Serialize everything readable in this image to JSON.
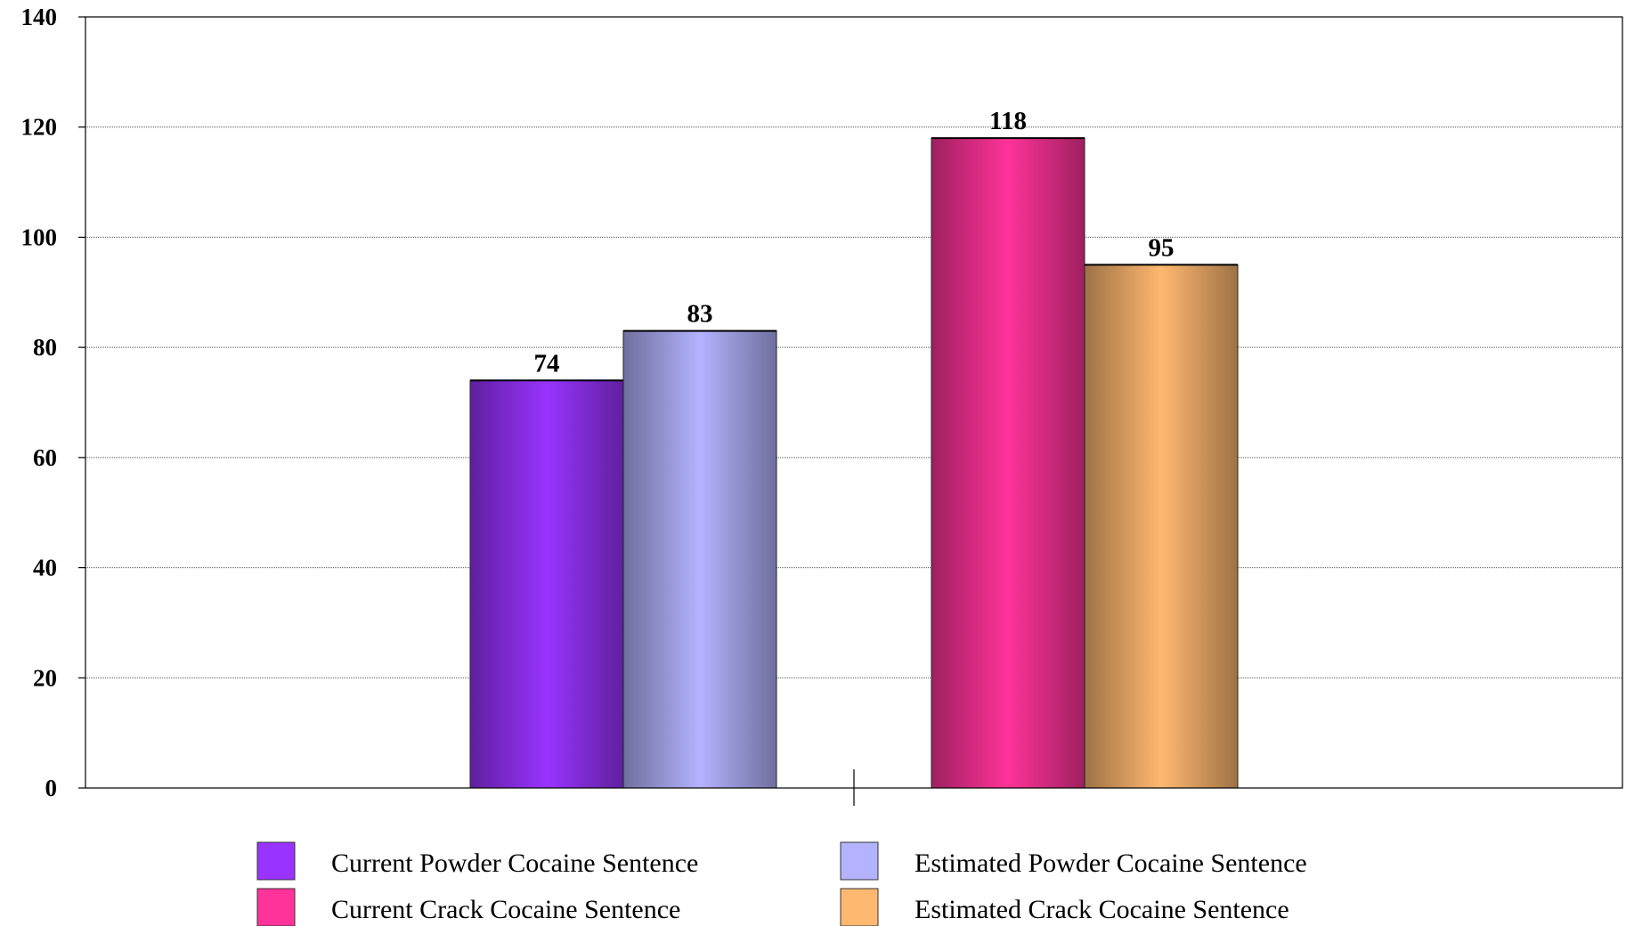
{
  "chart_data": {
    "type": "bar",
    "categories": [
      ""
    ],
    "series": [
      {
        "name": "Current Powder Cocaine Sentence",
        "values": [
          74
        ],
        "color": "#9933ff"
      },
      {
        "name": "Estimated Powder Cocaine Sentence",
        "values": [
          83
        ],
        "color": "#b3b3ff"
      },
      {
        "name": "Current Crack Cocaine Sentence",
        "values": [
          118
        ],
        "color": "#ff3399"
      },
      {
        "name": "Estimated Crack Cocaine Sentence",
        "values": [
          95
        ],
        "color": "#ffb870"
      }
    ],
    "ylim": [
      0,
      140
    ],
    "yticks": [
      0,
      20,
      40,
      60,
      80,
      100,
      120,
      140
    ],
    "grid": true,
    "legend_position": "bottom"
  }
}
